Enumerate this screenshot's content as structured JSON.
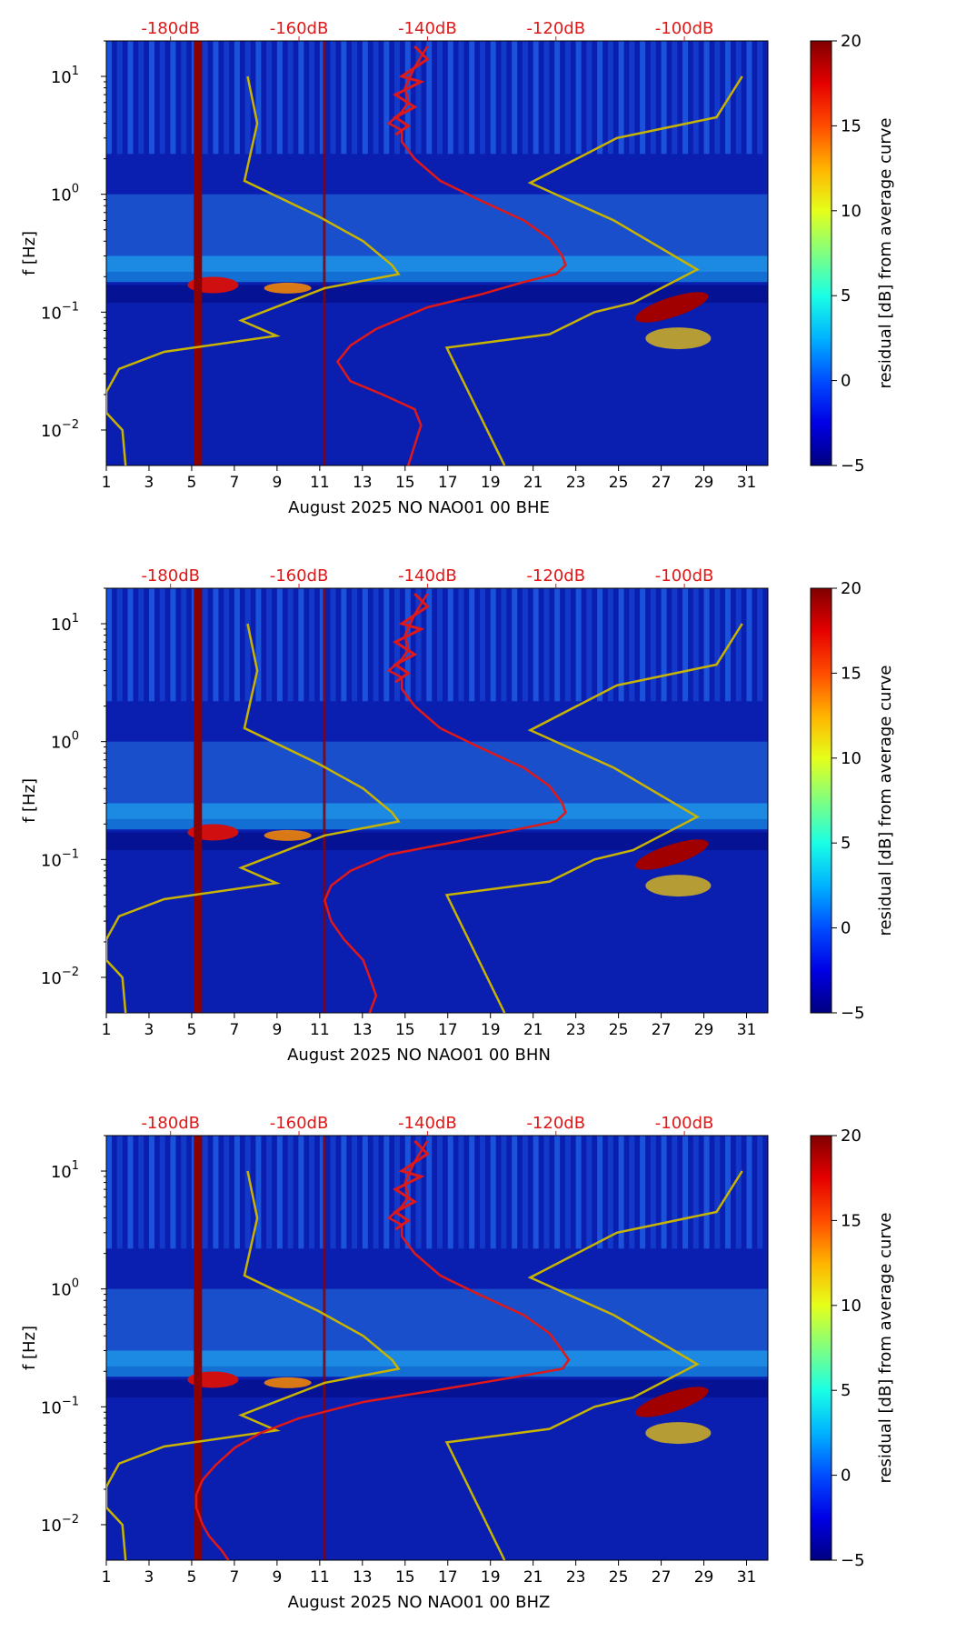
{
  "chart_data": [
    {
      "type": "heatmap",
      "title": "",
      "xlabel": "August 2025 NO NAO01 00 BHE",
      "ylabel": "f [Hz]",
      "x_ticks": [
        "1",
        "3",
        "5",
        "7",
        "9",
        "11",
        "13",
        "15",
        "17",
        "19",
        "21",
        "23",
        "25",
        "27",
        "29",
        "31"
      ],
      "x_range": [
        1,
        32
      ],
      "y_scale": "log",
      "y_range": [
        0.005,
        20
      ],
      "y_ticks": [
        {
          "label_base": "10",
          "label_exp": "1",
          "value": 10
        },
        {
          "label_base": "10",
          "label_exp": "0",
          "value": 1
        },
        {
          "label_base": "10",
          "label_exp": "−1",
          "value": 0.1
        },
        {
          "label_base": "10",
          "label_exp": "−2",
          "value": 0.01
        }
      ],
      "top_axis_labels": [
        "-180dB",
        "-160dB",
        "-140dB",
        "-120dB",
        "-100dB"
      ],
      "top_axis_values": [
        -180,
        -160,
        -140,
        -120,
        -100
      ],
      "colorbar": {
        "label": "residual [dB] from average curve",
        "ticks": [
          "20",
          "15",
          "10",
          "5",
          "0",
          "−5"
        ],
        "range": [
          -5,
          20
        ],
        "colormap": "jet"
      },
      "series": [
        {
          "name": "noise-model-curve",
          "color": "#c8b400",
          "points": [
            [
              -168,
              10
            ],
            [
              -166.5,
              4
            ],
            [
              -168.5,
              1.3
            ],
            [
              -157,
              0.65
            ],
            [
              -150,
              0.4
            ],
            [
              -145.5,
              0.25
            ],
            [
              -144.5,
              0.21
            ],
            [
              -156,
              0.16
            ],
            [
              -169,
              0.085
            ],
            [
              -163.5,
              0.063
            ],
            [
              -181,
              0.046
            ],
            [
              -188,
              0.033
            ],
            [
              -190,
              0.021
            ],
            [
              -190,
              0.014
            ],
            [
              -187.5,
              0.01
            ],
            [
              -187,
              0.005
            ]
          ]
        },
        {
          "name": "noise-model-curve",
          "color": "#c8b400",
          "points": [
            [
              -91,
              10
            ],
            [
              -95,
              4.5
            ],
            [
              -110.5,
              3
            ],
            [
              -124,
              1.25
            ],
            [
              -111,
              0.6
            ],
            [
              -98,
              0.23
            ],
            [
              -108,
              0.12
            ],
            [
              -114,
              0.1
            ],
            [
              -121,
              0.065
            ],
            [
              -137,
              0.05
            ],
            [
              -128,
              0.005
            ]
          ]
        },
        {
          "name": "average-psd-curve",
          "color": "#e01818",
          "points": [
            [
              -140,
              18
            ],
            [
              -142,
              12
            ],
            [
              -143.5,
              8
            ],
            [
              -143,
              6
            ],
            [
              -144,
              5
            ],
            [
              -146,
              4
            ],
            [
              -144,
              3.5
            ],
            [
              -144,
              2.8
            ],
            [
              -142,
              2
            ],
            [
              -138,
              1.3
            ],
            [
              -132,
              0.9
            ],
            [
              -125,
              0.6
            ],
            [
              -121,
              0.42
            ],
            [
              -119,
              0.3
            ],
            [
              -118.5,
              0.25
            ],
            [
              -120,
              0.21
            ],
            [
              -125,
              0.18
            ],
            [
              -132,
              0.14
            ],
            [
              -140,
              0.11
            ],
            [
              -148,
              0.072
            ],
            [
              -152,
              0.052
            ],
            [
              -154,
              0.038
            ],
            [
              -152,
              0.026
            ],
            [
              -147,
              0.02
            ],
            [
              -142,
              0.015
            ],
            [
              -141,
              0.011
            ],
            [
              -143,
              0.005
            ]
          ]
        },
        {
          "name": "average-psd-curve-fringe",
          "color": "#e01818",
          "points": [
            [
              -142,
              18
            ],
            [
              -140,
              14
            ],
            [
              -144,
              10
            ],
            [
              -141,
              9
            ],
            [
              -145,
              7
            ],
            [
              -142,
              5.5
            ],
            [
              -145,
              4.5
            ],
            [
              -143,
              3.8
            ],
            [
              -145,
              3.2
            ]
          ]
        }
      ]
    },
    {
      "type": "heatmap",
      "title": "",
      "xlabel": "August 2025 NO NAO01 00 BHN",
      "ylabel": "f [Hz]",
      "x_ticks": [
        "1",
        "3",
        "5",
        "7",
        "9",
        "11",
        "13",
        "15",
        "17",
        "19",
        "21",
        "23",
        "25",
        "27",
        "29",
        "31"
      ],
      "x_range": [
        1,
        32
      ],
      "y_scale": "log",
      "y_range": [
        0.005,
        20
      ],
      "y_ticks": [
        {
          "label_base": "10",
          "label_exp": "1",
          "value": 10
        },
        {
          "label_base": "10",
          "label_exp": "0",
          "value": 1
        },
        {
          "label_base": "10",
          "label_exp": "−1",
          "value": 0.1
        },
        {
          "label_base": "10",
          "label_exp": "−2",
          "value": 0.01
        }
      ],
      "top_axis_labels": [
        "-180dB",
        "-160dB",
        "-140dB",
        "-120dB",
        "-100dB"
      ],
      "top_axis_values": [
        -180,
        -160,
        -140,
        -120,
        -100
      ],
      "colorbar": {
        "label": "residual [dB] from average curve",
        "ticks": [
          "20",
          "15",
          "10",
          "5",
          "0",
          "−5"
        ],
        "range": [
          -5,
          20
        ],
        "colormap": "jet"
      },
      "series": [
        {
          "name": "noise-model-curve",
          "color": "#c8b400",
          "points": [
            [
              -168,
              10
            ],
            [
              -166.5,
              4
            ],
            [
              -168.5,
              1.3
            ],
            [
              -157,
              0.65
            ],
            [
              -150,
              0.4
            ],
            [
              -145.5,
              0.25
            ],
            [
              -144.5,
              0.21
            ],
            [
              -156,
              0.16
            ],
            [
              -169,
              0.085
            ],
            [
              -163.5,
              0.063
            ],
            [
              -181,
              0.046
            ],
            [
              -188,
              0.033
            ],
            [
              -190,
              0.021
            ],
            [
              -190,
              0.014
            ],
            [
              -187.5,
              0.01
            ],
            [
              -187,
              0.005
            ]
          ]
        },
        {
          "name": "noise-model-curve",
          "color": "#c8b400",
          "points": [
            [
              -91,
              10
            ],
            [
              -95,
              4.5
            ],
            [
              -110.5,
              3
            ],
            [
              -124,
              1.25
            ],
            [
              -111,
              0.6
            ],
            [
              -98,
              0.23
            ],
            [
              -108,
              0.12
            ],
            [
              -114,
              0.1
            ],
            [
              -121,
              0.065
            ],
            [
              -137,
              0.05
            ],
            [
              -128,
              0.005
            ]
          ]
        },
        {
          "name": "average-psd-curve",
          "color": "#e01818",
          "points": [
            [
              -140,
              18
            ],
            [
              -142,
              12
            ],
            [
              -143.5,
              8
            ],
            [
              -143,
              6
            ],
            [
              -144,
              5
            ],
            [
              -146,
              4
            ],
            [
              -144,
              3.5
            ],
            [
              -144,
              2.8
            ],
            [
              -142,
              2
            ],
            [
              -138,
              1.3
            ],
            [
              -132,
              0.9
            ],
            [
              -125,
              0.6
            ],
            [
              -121,
              0.42
            ],
            [
              -119,
              0.3
            ],
            [
              -118.5,
              0.25
            ],
            [
              -120,
              0.21
            ],
            [
              -126,
              0.18
            ],
            [
              -136,
              0.14
            ],
            [
              -146,
              0.11
            ],
            [
              -152,
              0.08
            ],
            [
              -155,
              0.06
            ],
            [
              -156,
              0.045
            ],
            [
              -155,
              0.03
            ],
            [
              -153,
              0.021
            ],
            [
              -150,
              0.014
            ],
            [
              -149,
              0.01
            ],
            [
              -148,
              0.007
            ],
            [
              -149,
              0.005
            ]
          ]
        },
        {
          "name": "average-psd-curve-fringe",
          "color": "#e01818",
          "points": [
            [
              -142,
              18
            ],
            [
              -140,
              14
            ],
            [
              -144,
              10
            ],
            [
              -141,
              9
            ],
            [
              -145,
              7
            ],
            [
              -142,
              5.5
            ],
            [
              -145,
              4.5
            ],
            [
              -143,
              3.8
            ],
            [
              -145,
              3.2
            ]
          ]
        }
      ]
    },
    {
      "type": "heatmap",
      "title": "",
      "xlabel": "August 2025 NO NAO01 00 BHZ",
      "ylabel": "f [Hz]",
      "x_ticks": [
        "1",
        "3",
        "5",
        "7",
        "9",
        "11",
        "13",
        "15",
        "17",
        "19",
        "21",
        "23",
        "25",
        "27",
        "29",
        "31"
      ],
      "x_range": [
        1,
        32
      ],
      "y_scale": "log",
      "y_range": [
        0.005,
        20
      ],
      "y_ticks": [
        {
          "label_base": "10",
          "label_exp": "1",
          "value": 10
        },
        {
          "label_base": "10",
          "label_exp": "0",
          "value": 1
        },
        {
          "label_base": "10",
          "label_exp": "−1",
          "value": 0.1
        },
        {
          "label_base": "10",
          "label_exp": "−2",
          "value": 0.01
        }
      ],
      "top_axis_labels": [
        "-180dB",
        "-160dB",
        "-140dB",
        "-120dB",
        "-100dB"
      ],
      "top_axis_values": [
        -180,
        -160,
        -140,
        -120,
        -100
      ],
      "colorbar": {
        "label": "residual [dB] from average curve",
        "ticks": [
          "20",
          "15",
          "10",
          "5",
          "0",
          "−5"
        ],
        "range": [
          -5,
          20
        ],
        "colormap": "jet"
      },
      "series": [
        {
          "name": "noise-model-curve",
          "color": "#c8b400",
          "points": [
            [
              -168,
              10
            ],
            [
              -166.5,
              4
            ],
            [
              -168.5,
              1.3
            ],
            [
              -157,
              0.65
            ],
            [
              -150,
              0.4
            ],
            [
              -145.5,
              0.25
            ],
            [
              -144.5,
              0.21
            ],
            [
              -156,
              0.16
            ],
            [
              -169,
              0.085
            ],
            [
              -163.5,
              0.063
            ],
            [
              -181,
              0.046
            ],
            [
              -188,
              0.033
            ],
            [
              -190,
              0.021
            ],
            [
              -190,
              0.014
            ],
            [
              -187.5,
              0.01
            ],
            [
              -187,
              0.005
            ]
          ]
        },
        {
          "name": "noise-model-curve",
          "color": "#c8b400",
          "points": [
            [
              -91,
              10
            ],
            [
              -95,
              4.5
            ],
            [
              -110.5,
              3
            ],
            [
              -124,
              1.25
            ],
            [
              -111,
              0.6
            ],
            [
              -98,
              0.23
            ],
            [
              -108,
              0.12
            ],
            [
              -114,
              0.1
            ],
            [
              -121,
              0.065
            ],
            [
              -137,
              0.05
            ],
            [
              -128,
              0.005
            ]
          ]
        },
        {
          "name": "average-psd-curve",
          "color": "#e01818",
          "points": [
            [
              -140,
              18
            ],
            [
              -142,
              12
            ],
            [
              -143.5,
              8
            ],
            [
              -143,
              6
            ],
            [
              -144,
              5
            ],
            [
              -146,
              4
            ],
            [
              -144,
              3.5
            ],
            [
              -144,
              2.8
            ],
            [
              -142,
              2
            ],
            [
              -138,
              1.3
            ],
            [
              -132,
              0.9
            ],
            [
              -125,
              0.6
            ],
            [
              -121,
              0.42
            ],
            [
              -119,
              0.3
            ],
            [
              -118,
              0.25
            ],
            [
              -119,
              0.21
            ],
            [
              -126,
              0.18
            ],
            [
              -138,
              0.14
            ],
            [
              -150,
              0.11
            ],
            [
              -160,
              0.08
            ],
            [
              -166,
              0.06
            ],
            [
              -170,
              0.045
            ],
            [
              -173,
              0.032
            ],
            [
              -175,
              0.024
            ],
            [
              -176,
              0.018
            ],
            [
              -176,
              0.014
            ],
            [
              -175,
              0.01
            ],
            [
              -174,
              0.008
            ],
            [
              -172,
              0.006
            ],
            [
              -171,
              0.005
            ]
          ]
        },
        {
          "name": "average-psd-curve-fringe",
          "color": "#e01818",
          "points": [
            [
              -142,
              18
            ],
            [
              -140,
              14
            ],
            [
              -144,
              10
            ],
            [
              -141,
              9
            ],
            [
              -145,
              7
            ],
            [
              -142,
              5.5
            ],
            [
              -145,
              4.5
            ],
            [
              -143,
              3.8
            ],
            [
              -145,
              3.2
            ]
          ]
        }
      ]
    }
  ]
}
